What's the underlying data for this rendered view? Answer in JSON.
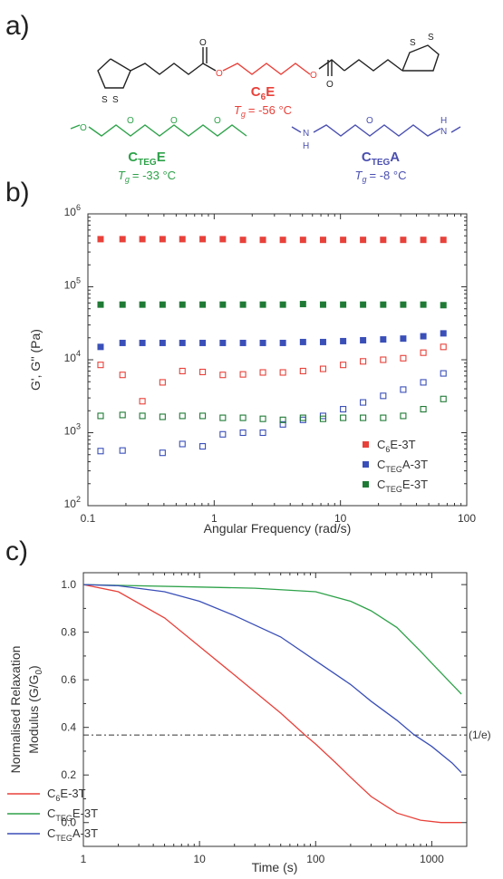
{
  "panels": {
    "a": {
      "label": "a)",
      "molecules": [
        {
          "name_main": "C",
          "name_sub": "6",
          "name_tail": "E",
          "tg_symbol": "T",
          "tg_sub": "g",
          "tg_value": "= -56 °C",
          "color": "#e8413a"
        },
        {
          "name_main": "C",
          "name_sub": "TEG",
          "name_tail": "E",
          "tg_symbol": "T",
          "tg_sub": "g",
          "tg_value": "= -33 °C",
          "color": "#2ea24a"
        },
        {
          "name_main": "C",
          "name_sub": "TEG",
          "name_tail": "A",
          "tg_symbol": "T",
          "tg_sub": "g",
          "tg_value": "= -8 °C",
          "color": "#4a4fb0"
        }
      ],
      "atoms": {
        "O": "O",
        "S": "S",
        "N": "N",
        "H": "H"
      }
    },
    "b": {
      "label": "b)"
    },
    "c": {
      "label": "c)"
    }
  },
  "chart_data": [
    {
      "type": "scatter",
      "xlabel": "Angular Frequency (rad/s)",
      "ylabel": "G', G'' (Pa)",
      "xscale": "log",
      "yscale": "log",
      "xlim": [
        0.1,
        100
      ],
      "ylim": [
        100,
        1000000
      ],
      "x_ticks": [
        "0.1",
        "1",
        "10",
        "100"
      ],
      "y_ticks": [
        {
          "base": "10",
          "exp": "2"
        },
        {
          "base": "10",
          "exp": "3"
        },
        {
          "base": "10",
          "exp": "4"
        },
        {
          "base": "10",
          "exp": "5"
        },
        {
          "base": "10",
          "exp": "6"
        }
      ],
      "legend_position": "bottom-right",
      "x": [
        0.126,
        0.188,
        0.27,
        0.39,
        0.56,
        0.81,
        1.17,
        1.69,
        2.43,
        3.5,
        5.05,
        7.28,
        10.5,
        15.1,
        21.8,
        31.4,
        45.3,
        65.3
      ],
      "series": [
        {
          "legend_main": "C",
          "legend_sub": "6",
          "legend_tail": "E-3T",
          "color": "#e8413a",
          "storage": [
            450000,
            450000,
            450000,
            450000,
            450000,
            450000,
            450000,
            440000,
            440000,
            440000,
            440000,
            440000,
            440000,
            440000,
            440000,
            440000,
            440000,
            440000
          ],
          "loss": [
            8500,
            6200,
            2700,
            4900,
            7000,
            6800,
            6200,
            6300,
            6700,
            6700,
            7000,
            7500,
            8500,
            9500,
            10000,
            10500,
            12500,
            15000
          ]
        },
        {
          "legend_main": "C",
          "legend_sub": "TEG",
          "legend_tail": "A-3T",
          "color": "#3a4fb8",
          "storage": [
            15000,
            17000,
            17000,
            17000,
            17000,
            17000,
            17000,
            17000,
            17000,
            17000,
            17500,
            17500,
            18000,
            18500,
            19000,
            19500,
            21000,
            23000
          ],
          "loss": [
            560,
            570,
            null,
            530,
            700,
            650,
            950,
            1000,
            1000,
            1300,
            1500,
            1700,
            2100,
            2600,
            3200,
            3900,
            4900,
            6500
          ]
        },
        {
          "legend_main": "C",
          "legend_sub": "TEG",
          "legend_tail": "E-3T",
          "color": "#1f7a35",
          "storage": [
            57000,
            57000,
            57000,
            57000,
            57000,
            57000,
            57000,
            57000,
            57000,
            57000,
            58000,
            57000,
            57000,
            57000,
            57000,
            57000,
            57000,
            56000
          ],
          "loss": [
            1700,
            1750,
            1700,
            1650,
            1700,
            1700,
            1600,
            1600,
            1550,
            1500,
            1600,
            1550,
            1600,
            1600,
            1600,
            1700,
            2100,
            2900
          ]
        }
      ]
    },
    {
      "type": "line",
      "xlabel": "Time (s)",
      "ylabel_line1": "Normalised Relaxation",
      "ylabel_line2_main": "Modulus (G/G",
      "ylabel_line2_sub": "0",
      "ylabel_line2_tail": ")",
      "xscale": "log",
      "xlim": [
        1,
        2000
      ],
      "ylim": [
        -0.1,
        1.05
      ],
      "x_ticks": [
        "1",
        "10",
        "100",
        "1000"
      ],
      "y_ticks": [
        "0.0",
        "0.2",
        "0.4",
        "0.6",
        "0.8",
        "1.0"
      ],
      "legend_position": "bottom-left",
      "reference_line": {
        "y": 0.368,
        "label": "(1/e)"
      },
      "series": [
        {
          "legend_main": "C",
          "legend_sub": "6",
          "legend_tail": "E-3T",
          "color": "#e8413a",
          "x": [
            1,
            2,
            5,
            10,
            20,
            50,
            80,
            100,
            150,
            200,
            300,
            500,
            800,
            1200,
            1800
          ],
          "y": [
            1.0,
            0.97,
            0.86,
            0.74,
            0.62,
            0.46,
            0.37,
            0.33,
            0.25,
            0.19,
            0.11,
            0.04,
            0.01,
            0.0,
            0.0
          ]
        },
        {
          "legend_main": "C",
          "legend_sub": "TEG",
          "legend_tail": "E-3T",
          "color": "#2ea24a",
          "x": [
            1,
            10,
            30,
            100,
            200,
            300,
            500,
            800,
            1000,
            1500,
            1800
          ],
          "y": [
            1.0,
            0.99,
            0.985,
            0.97,
            0.93,
            0.89,
            0.82,
            0.72,
            0.67,
            0.58,
            0.54
          ]
        },
        {
          "legend_main": "C",
          "legend_sub": "TEG",
          "legend_tail": "A-3T",
          "color": "#3a4fb8",
          "x": [
            1,
            2,
            5,
            10,
            20,
            30,
            50,
            100,
            200,
            300,
            500,
            700,
            1000,
            1500,
            1800
          ],
          "y": [
            1.0,
            0.995,
            0.97,
            0.93,
            0.87,
            0.83,
            0.78,
            0.68,
            0.58,
            0.51,
            0.43,
            0.37,
            0.32,
            0.25,
            0.21
          ]
        }
      ]
    }
  ]
}
